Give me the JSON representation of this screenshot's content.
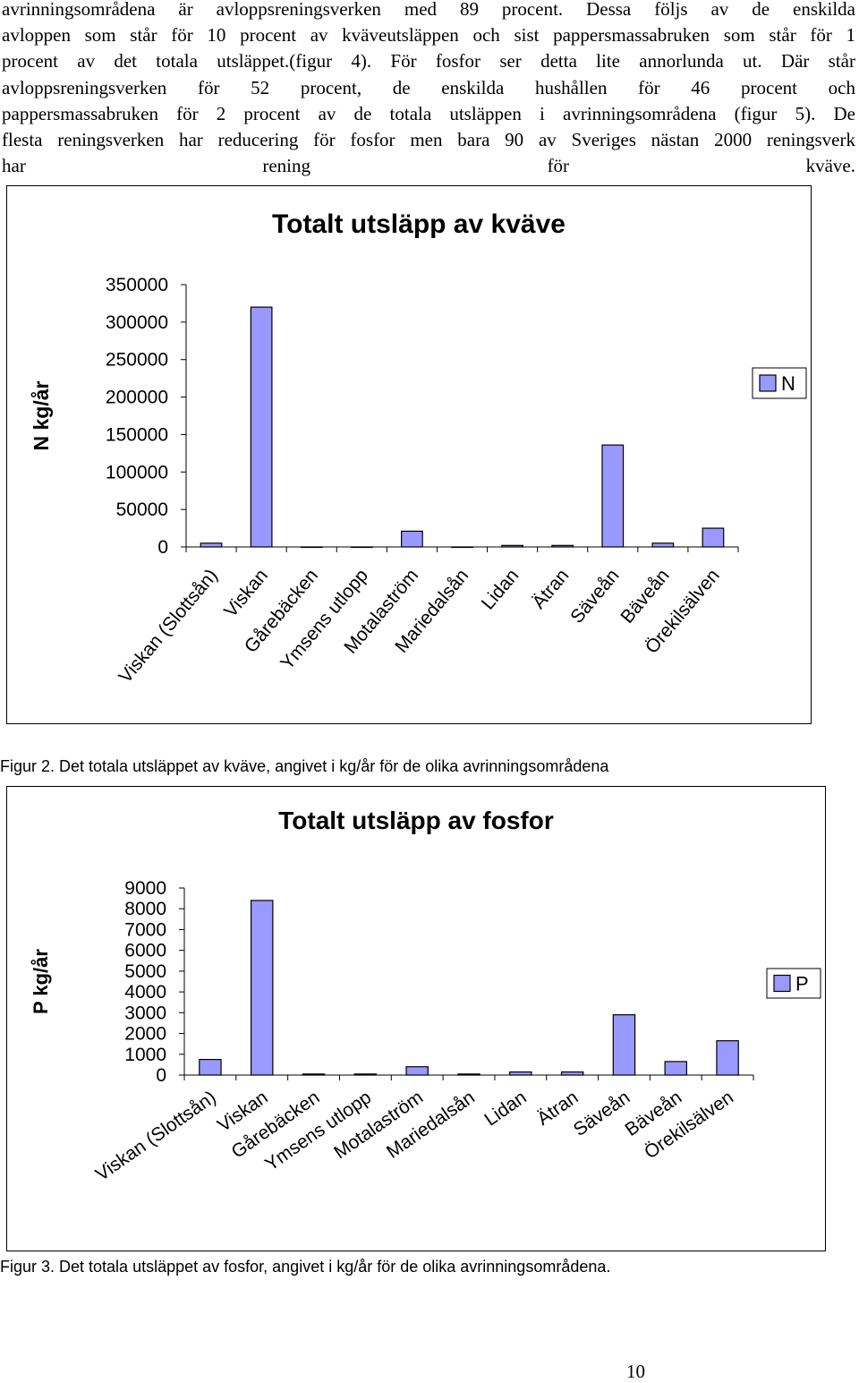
{
  "body_text": {
    "lines": [
      "avrinningsområdena är avloppsreningsverken med 89 procent. Dessa följs av de enskilda",
      "avloppen som står för 10 procent av kväveutsläppen och sist pappersmassabruken som står för 1",
      "procent av det totala utsläppet.(figur 4). För fosfor ser detta lite annorlunda ut. Där står",
      "avloppsreningsverken för 52 procent, de enskilda hushållen för 46 procent och",
      "pappersmassabruken för 2 procent av de totala utsläppen i avrinningsområdena (figur 5). De",
      "flesta reningsverken har reducering för fosfor men bara 90 av Sveriges nästan 2000 reningsverk",
      "har rening för kväve."
    ]
  },
  "colors": {
    "bar_fill": "#9999ff",
    "bar_stroke": "#000000",
    "frame": "#000000"
  },
  "chart_data": [
    {
      "type": "bar",
      "title": "Totalt utsläpp av kväve",
      "ylabel": "N kg/år",
      "xlabel": "",
      "categories": [
        "Viskan (Slottsån)",
        "Viskan",
        "Gårebäcken",
        "Ymsens utlopp",
        "Motalaström",
        "Mariedalsån",
        "Lidan",
        "Ätran",
        "Säveån",
        "Bäveån",
        "Örekilsälven"
      ],
      "series": [
        {
          "name": "N",
          "values": [
            5000,
            320000,
            0,
            0,
            21000,
            0,
            2000,
            2000,
            136000,
            5000,
            25000
          ]
        }
      ],
      "ylim": [
        0,
        350000
      ],
      "yticks": [
        "350000",
        "300000",
        "250000",
        "200000",
        "150000",
        "100000",
        "50000",
        "0"
      ],
      "legend": "right"
    },
    {
      "type": "bar",
      "title": "Totalt utsläpp av fosfor",
      "ylabel": "P kg/år",
      "xlabel": "",
      "categories": [
        "Viskan (Slottsån)",
        "Viskan",
        "Gårebäcken",
        "Ymsens utlopp",
        "Motalaström",
        "Mariedalsån",
        "Lidan",
        "Ätran",
        "Säveån",
        "Bäveån",
        "Örekilsälven"
      ],
      "series": [
        {
          "name": "P",
          "values": [
            750,
            8400,
            50,
            50,
            400,
            50,
            150,
            150,
            2900,
            650,
            1650
          ]
        }
      ],
      "ylim": [
        0,
        9000
      ],
      "yticks": [
        "9000",
        "8000",
        "7000",
        "6000",
        "5000",
        "4000",
        "3000",
        "2000",
        "1000",
        "0"
      ],
      "legend": "right"
    }
  ],
  "captions": {
    "fig2": "Figur 2. Det totala utsläppet av kväve, angivet i kg/år för de olika avrinningsområdena",
    "fig3": "Figur 3. Det totala utsläppet av fosfor, angivet i kg/år för de olika avrinningsområdena."
  },
  "page_number": "10"
}
